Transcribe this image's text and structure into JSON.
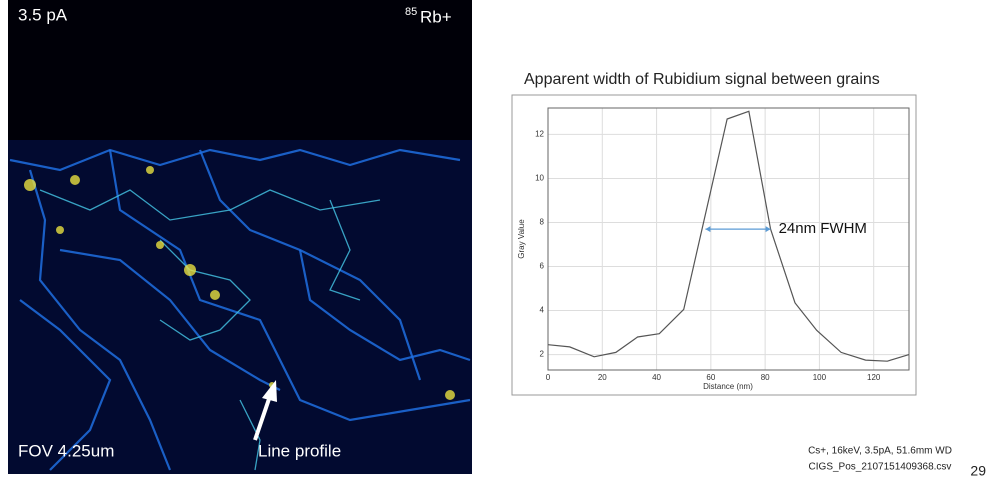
{
  "image": {
    "beam_current": "3.5 pA",
    "isotope_mass": "85",
    "isotope_ion": "Rb+",
    "fov": "FOV 4.25um",
    "annotation": "Line profile"
  },
  "chart_data": {
    "type": "line",
    "title": "Apparent width of Rubidium signal between grains",
    "x_label": "Distance (nm)",
    "y_label": "Gray Value",
    "x": [
      0,
      8,
      17,
      25,
      33,
      41,
      50,
      66,
      74,
      82,
      91,
      99,
      108,
      117,
      125,
      133
    ],
    "series": [
      {
        "name": "Gray Value",
        "color": "#555555",
        "values": [
          2.45,
          2.35,
          1.9,
          2.1,
          2.8,
          2.95,
          4.05,
          12.7,
          13.05,
          7.7,
          4.35,
          3.1,
          2.1,
          1.75,
          1.7,
          2.0
        ]
      }
    ],
    "xlim": [
      0,
      133
    ],
    "xticks": [
      0,
      20,
      40,
      60,
      80,
      100,
      120
    ],
    "ylim": [
      1.3,
      13.2
    ],
    "yticks": [
      2,
      4,
      6,
      8,
      10,
      12
    ],
    "grid": true,
    "annotation": {
      "text": "24nm FWHM",
      "x": [
        58,
        82
      ],
      "y": 7.7,
      "color": "#5b9bd5"
    }
  },
  "footer": {
    "settings": "Cs+, 16keV, 3.5pA, 51.6mm  WD",
    "file": "CIGS_Pos_2107151409368.csv",
    "page": "29"
  }
}
